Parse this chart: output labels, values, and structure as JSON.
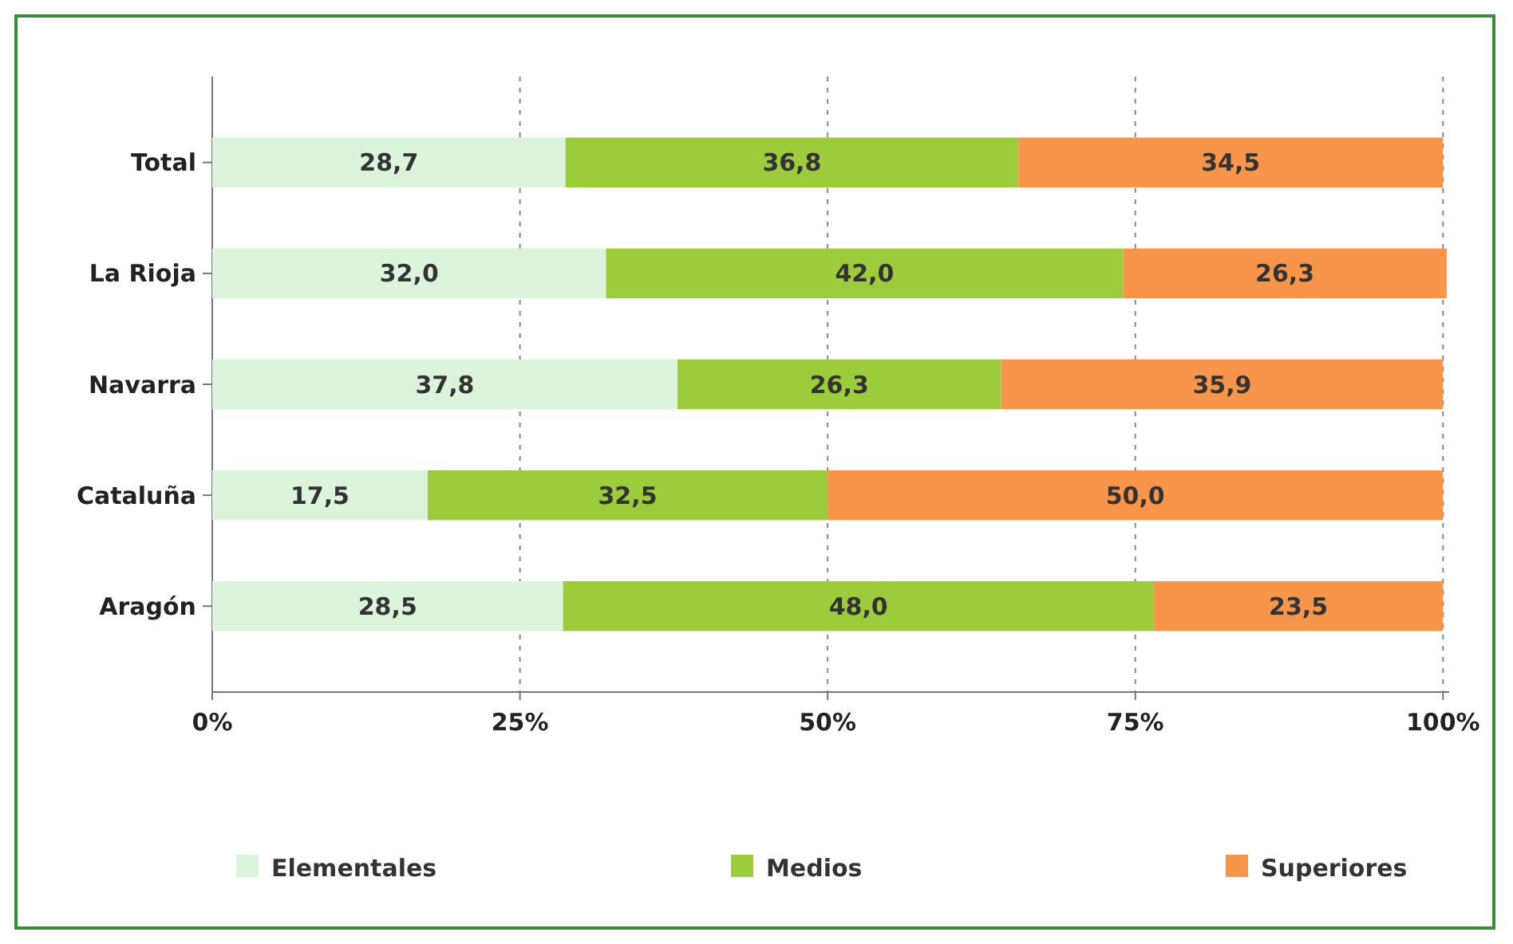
{
  "chart_data": {
    "type": "bar",
    "orientation": "horizontal",
    "stacked": true,
    "categories": [
      "Total",
      "La Rioja",
      "Navarra",
      "Cataluña",
      "Aragón"
    ],
    "series": [
      {
        "name": "Elementales",
        "color": "#dcf3dc",
        "values": [
          28.7,
          32.0,
          37.8,
          17.5,
          28.5
        ],
        "value_labels": [
          "28,7",
          "32,0",
          "37,8",
          "17,5",
          "28,5"
        ]
      },
      {
        "name": "Medios",
        "color": "#9ccc3c",
        "values": [
          36.8,
          42.0,
          26.3,
          32.5,
          48.0
        ],
        "value_labels": [
          "36,8",
          "42,0",
          "26,3",
          "32,5",
          "48,0"
        ]
      },
      {
        "name": "Superiores",
        "color": "#f7964a",
        "values": [
          34.5,
          26.3,
          35.9,
          50.0,
          23.5
        ],
        "value_labels": [
          "34,5",
          "26,3",
          "35,9",
          "50,0",
          "23,5"
        ]
      }
    ],
    "xlim": [
      0,
      100.5
    ],
    "xticks": [
      {
        "value": 0,
        "label": "0%"
      },
      {
        "value": 25,
        "label": "25%"
      },
      {
        "value": 50,
        "label": "50%"
      },
      {
        "value": 75,
        "label": "75%"
      },
      {
        "value": 100,
        "label": "100%"
      }
    ],
    "grid": "x",
    "line_style": "dashed",
    "legend": "bottom"
  }
}
